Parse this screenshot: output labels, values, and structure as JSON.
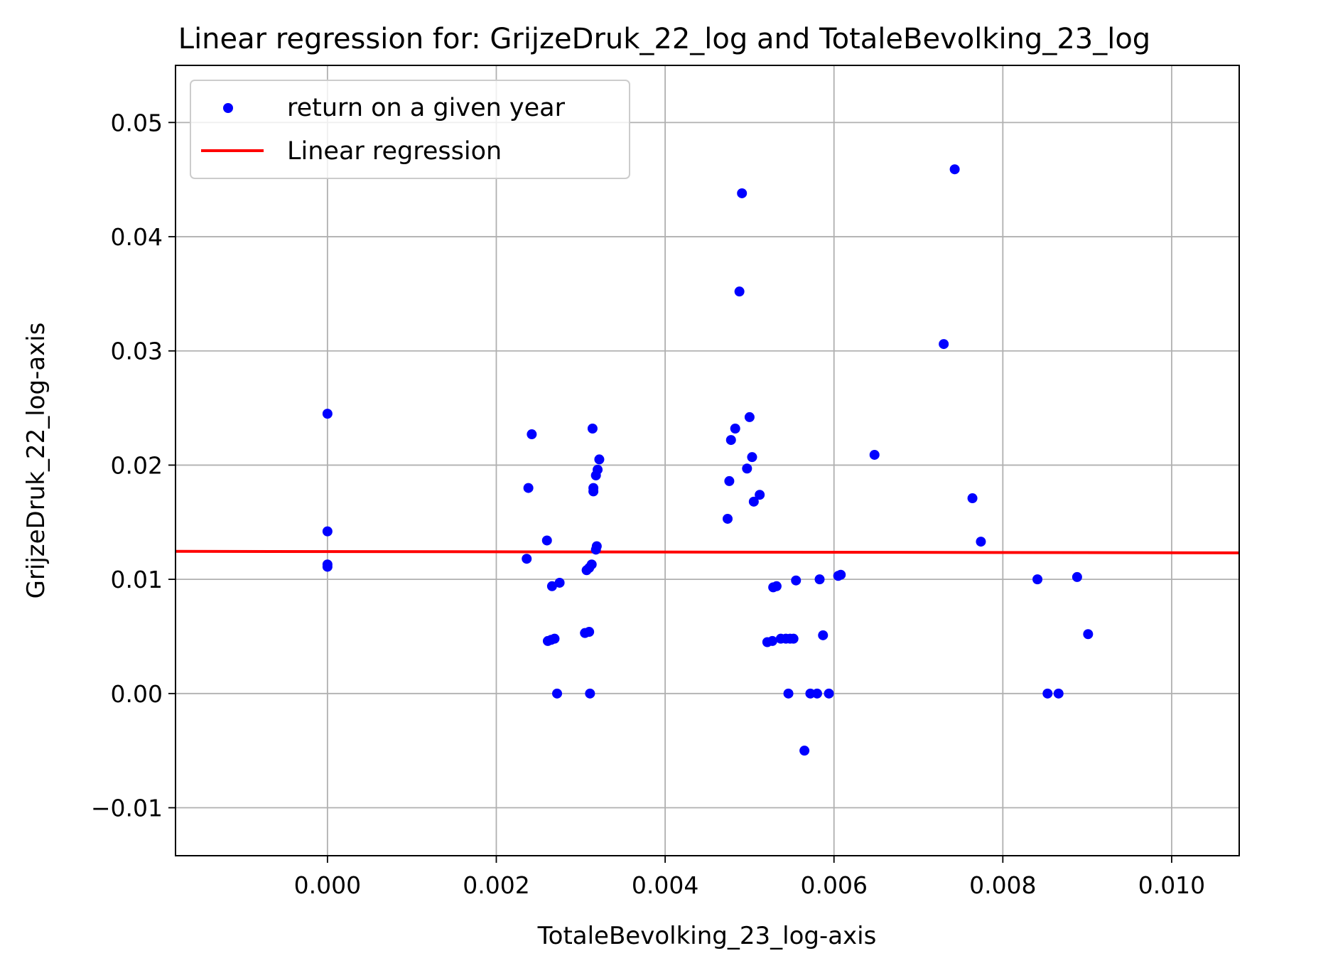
{
  "chart_data": {
    "type": "scatter",
    "title": "Linear regression for: GrijzeDruk_22_log and TotaleBevolking_23_log",
    "xlabel": "TotaleBevolking_23_log-axis",
    "ylabel": "GrijzeDruk_22_log-axis",
    "xlim": [
      -0.0018,
      0.0108
    ],
    "ylim": [
      -0.0142,
      0.055
    ],
    "xticks": [
      0.0,
      0.002,
      0.004,
      0.006,
      0.008,
      0.01
    ],
    "xtick_labels": [
      "0.000",
      "0.002",
      "0.004",
      "0.006",
      "0.008",
      "0.010"
    ],
    "yticks": [
      -0.01,
      0.0,
      0.01,
      0.02,
      0.03,
      0.04,
      0.05
    ],
    "ytick_labels": [
      "−0.01",
      "0.00",
      "0.01",
      "0.02",
      "0.03",
      "0.04",
      "0.05"
    ],
    "grid": true,
    "legend_position": "top-left",
    "scatter_color": "#0000ff",
    "line_color": "#ff0000",
    "series": [
      {
        "name": "return on a given year",
        "kind": "scatter",
        "points": [
          [
            0.0,
            0.0245
          ],
          [
            0.0,
            0.0142
          ],
          [
            0.0,
            0.0113
          ],
          [
            0.0,
            0.0111
          ],
          [
            0.00238,
            0.018
          ],
          [
            0.00242,
            0.0227
          ],
          [
            0.00236,
            0.0118
          ],
          [
            0.0026,
            0.0134
          ],
          [
            0.00261,
            0.0046
          ],
          [
            0.00265,
            0.0047
          ],
          [
            0.00269,
            0.0048
          ],
          [
            0.00266,
            0.0094
          ],
          [
            0.00275,
            0.0097
          ],
          [
            0.00272,
            0.0
          ],
          [
            0.00314,
            0.0232
          ],
          [
            0.00322,
            0.0205
          ],
          [
            0.0032,
            0.0196
          ],
          [
            0.00318,
            0.0191
          ],
          [
            0.00315,
            0.018
          ],
          [
            0.00315,
            0.0177
          ],
          [
            0.00319,
            0.0129
          ],
          [
            0.00318,
            0.0126
          ],
          [
            0.00313,
            0.0113
          ],
          [
            0.0031,
            0.011
          ],
          [
            0.00307,
            0.0108
          ],
          [
            0.00305,
            0.0053
          ],
          [
            0.0031,
            0.0054
          ],
          [
            0.00311,
            0.0
          ],
          [
            0.00491,
            0.0438
          ],
          [
            0.00488,
            0.0352
          ],
          [
            0.005,
            0.0242
          ],
          [
            0.00483,
            0.0232
          ],
          [
            0.00478,
            0.0222
          ],
          [
            0.00503,
            0.0207
          ],
          [
            0.00497,
            0.0197
          ],
          [
            0.00476,
            0.0186
          ],
          [
            0.00512,
            0.0174
          ],
          [
            0.00505,
            0.0168
          ],
          [
            0.00474,
            0.0153
          ],
          [
            0.00528,
            0.0093
          ],
          [
            0.00532,
            0.0094
          ],
          [
            0.00555,
            0.0099
          ],
          [
            0.00521,
            0.0045
          ],
          [
            0.00527,
            0.0046
          ],
          [
            0.00537,
            0.0048
          ],
          [
            0.00543,
            0.0048
          ],
          [
            0.00548,
            0.0048
          ],
          [
            0.00552,
            0.0048
          ],
          [
            0.00546,
            0.0
          ],
          [
            0.00572,
            0.0
          ],
          [
            0.0058,
            0.0
          ],
          [
            0.00594,
            0.0
          ],
          [
            0.00565,
            -0.005
          ],
          [
            0.00583,
            0.01
          ],
          [
            0.00587,
            0.0051
          ],
          [
            0.00605,
            0.0103
          ],
          [
            0.00608,
            0.0104
          ],
          [
            0.00648,
            0.0209
          ],
          [
            0.00743,
            0.0459
          ],
          [
            0.0073,
            0.0306
          ],
          [
            0.00764,
            0.0171
          ],
          [
            0.00774,
            0.0133
          ],
          [
            0.00841,
            0.01
          ],
          [
            0.00888,
            0.0102
          ],
          [
            0.00901,
            0.0052
          ],
          [
            0.00853,
            0.0
          ],
          [
            0.00866,
            0.0
          ]
        ]
      },
      {
        "name": "Linear regression",
        "kind": "line",
        "points": [
          [
            -0.0018,
            0.01245
          ],
          [
            0.0108,
            0.01232
          ]
        ]
      }
    ]
  }
}
